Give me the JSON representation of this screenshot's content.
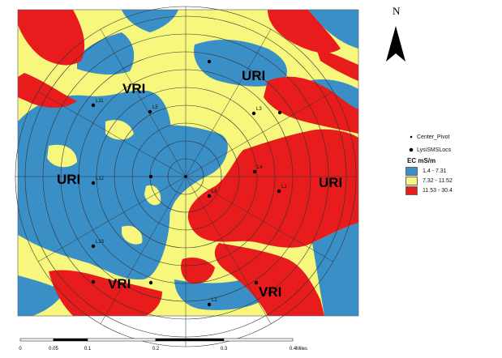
{
  "zone_labels": {
    "vri_top": "VRI",
    "uri_top": "URI",
    "uri_left": "URI",
    "uri_right": "URI",
    "vri_bottom_left": "VRI",
    "vri_bottom_right": "VRI"
  },
  "location_labels": {
    "l11": "L11",
    "l5": "L5",
    "l3": "L3",
    "l4": "L4",
    "l12": "L12",
    "l6": "L6",
    "l1": "L1",
    "l13": "L13",
    "l2": "L2"
  },
  "north_arrow": {
    "letter": "N",
    "icon": "north-arrow-icon"
  },
  "legend": {
    "center_pivot": "Center_Pivot",
    "lysi_locs": "LysiSMSLocs",
    "title": "EC mS/m",
    "classes": [
      {
        "label": "1.4 - 7.31",
        "color": "#3a8fc7"
      },
      {
        "label": "7.32 - 11.52",
        "color": "#f7f77d"
      },
      {
        "label": "11.53 - 30.4",
        "color": "#e81c1c"
      }
    ]
  },
  "scale_bar": {
    "ticks": [
      "0",
      "0.05",
      "0.1",
      "0.2",
      "0.3",
      "0.4"
    ],
    "unit": "Miles"
  }
}
